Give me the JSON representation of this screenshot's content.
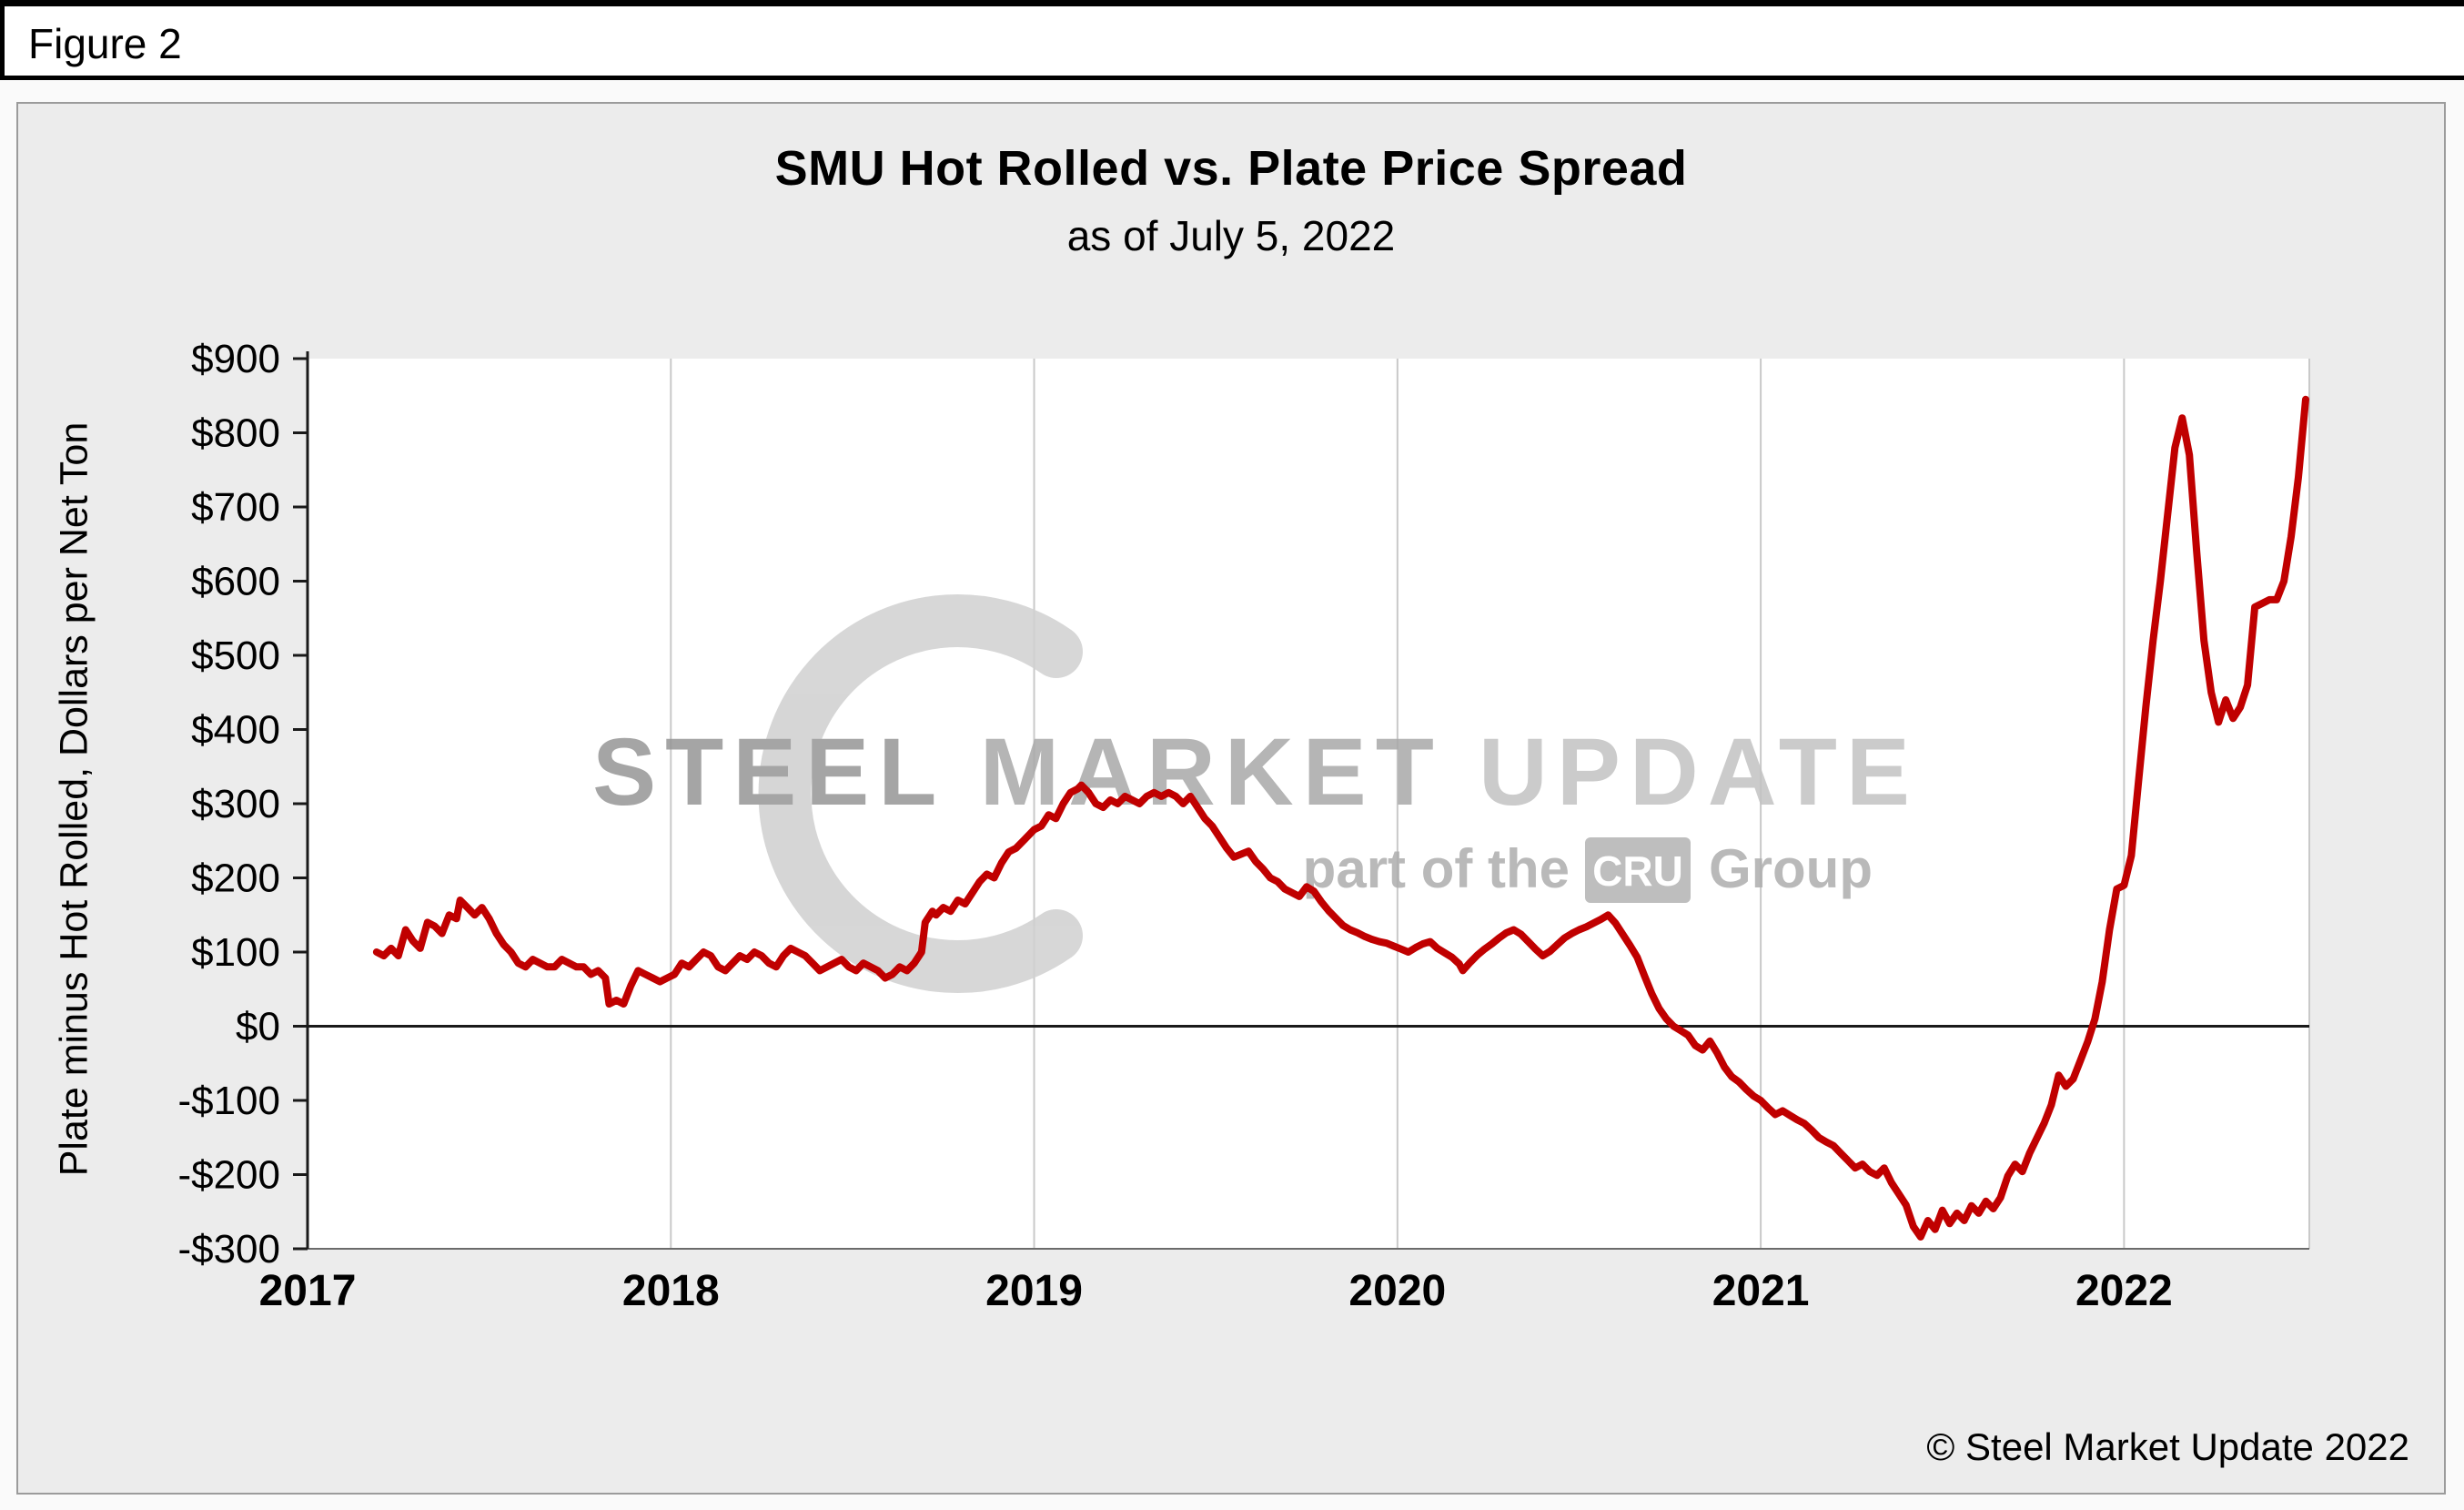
{
  "figure": {
    "label": "Figure 2"
  },
  "chart": {
    "title": "SMU Hot Rolled vs. Plate Price Spread",
    "subtitle": "as of July 5, 2022",
    "y_axis_label": "Plate minus Hot Rolled, Dollars per Net Ton",
    "copyright": "© Steel Market Update 2022"
  },
  "watermark": {
    "word1": "STEEL",
    "word2": "MARKET",
    "word3": "UPDATE",
    "tagline_pre": "part of the",
    "badge": "CRU",
    "tagline_post": "Group"
  },
  "chart_data": {
    "type": "line",
    "title": "SMU Hot Rolled vs. Plate Price Spread",
    "subtitle": "as of July 5, 2022",
    "xlabel": "",
    "ylabel": "Plate minus Hot Rolled, Dollars per Net Ton",
    "series_name": "Plate minus Hot Rolled price spread ($/net ton)",
    "color": "#C00000",
    "xlim": [
      2017,
      2022.51
    ],
    "ylim": [
      -300,
      900
    ],
    "x_ticks": [
      2017,
      2018,
      2019,
      2020,
      2021,
      2022
    ],
    "x_tick_labels": [
      "2017",
      "2018",
      "2019",
      "2020",
      "2021",
      "2022"
    ],
    "y_ticks": [
      900,
      800,
      700,
      600,
      500,
      400,
      300,
      200,
      100,
      0,
      -100,
      -200,
      -300
    ],
    "y_tick_labels": [
      "$900",
      "$800",
      "$700",
      "$600",
      "$500",
      "$400",
      "$300",
      "$200",
      "$100",
      "$0",
      "-$100",
      "-$200",
      "-$300"
    ],
    "grid": "vertical-only",
    "zero_line": true,
    "legend": "none",
    "points": [
      [
        2017.19,
        100
      ],
      [
        2017.21,
        95
      ],
      [
        2017.23,
        105
      ],
      [
        2017.25,
        95
      ],
      [
        2017.27,
        130
      ],
      [
        2017.29,
        115
      ],
      [
        2017.31,
        105
      ],
      [
        2017.33,
        140
      ],
      [
        2017.35,
        135
      ],
      [
        2017.37,
        125
      ],
      [
        2017.39,
        150
      ],
      [
        2017.41,
        145
      ],
      [
        2017.42,
        170
      ],
      [
        2017.44,
        160
      ],
      [
        2017.46,
        150
      ],
      [
        2017.48,
        160
      ],
      [
        2017.5,
        145
      ],
      [
        2017.52,
        125
      ],
      [
        2017.54,
        110
      ],
      [
        2017.56,
        100
      ],
      [
        2017.58,
        85
      ],
      [
        2017.6,
        80
      ],
      [
        2017.62,
        90
      ],
      [
        2017.64,
        85
      ],
      [
        2017.66,
        80
      ],
      [
        2017.68,
        80
      ],
      [
        2017.7,
        90
      ],
      [
        2017.72,
        85
      ],
      [
        2017.74,
        80
      ],
      [
        2017.76,
        80
      ],
      [
        2017.78,
        70
      ],
      [
        2017.8,
        75
      ],
      [
        2017.82,
        65
      ],
      [
        2017.83,
        30
      ],
      [
        2017.85,
        35
      ],
      [
        2017.87,
        30
      ],
      [
        2017.89,
        55
      ],
      [
        2017.91,
        75
      ],
      [
        2017.93,
        70
      ],
      [
        2017.95,
        65
      ],
      [
        2017.97,
        60
      ],
      [
        2017.99,
        65
      ],
      [
        2018.01,
        70
      ],
      [
        2018.03,
        85
      ],
      [
        2018.05,
        80
      ],
      [
        2018.07,
        90
      ],
      [
        2018.09,
        100
      ],
      [
        2018.11,
        95
      ],
      [
        2018.13,
        80
      ],
      [
        2018.15,
        75
      ],
      [
        2018.17,
        85
      ],
      [
        2018.19,
        95
      ],
      [
        2018.21,
        90
      ],
      [
        2018.23,
        100
      ],
      [
        2018.25,
        95
      ],
      [
        2018.27,
        85
      ],
      [
        2018.29,
        80
      ],
      [
        2018.31,
        95
      ],
      [
        2018.33,
        105
      ],
      [
        2018.35,
        100
      ],
      [
        2018.37,
        95
      ],
      [
        2018.39,
        85
      ],
      [
        2018.41,
        75
      ],
      [
        2018.43,
        80
      ],
      [
        2018.45,
        85
      ],
      [
        2018.47,
        90
      ],
      [
        2018.49,
        80
      ],
      [
        2018.51,
        75
      ],
      [
        2018.53,
        85
      ],
      [
        2018.55,
        80
      ],
      [
        2018.57,
        75
      ],
      [
        2018.59,
        65
      ],
      [
        2018.61,
        70
      ],
      [
        2018.63,
        80
      ],
      [
        2018.65,
        75
      ],
      [
        2018.67,
        85
      ],
      [
        2018.69,
        100
      ],
      [
        2018.7,
        140
      ],
      [
        2018.72,
        155
      ],
      [
        2018.73,
        150
      ],
      [
        2018.75,
        160
      ],
      [
        2018.77,
        155
      ],
      [
        2018.79,
        170
      ],
      [
        2018.81,
        165
      ],
      [
        2018.83,
        180
      ],
      [
        2018.85,
        195
      ],
      [
        2018.87,
        205
      ],
      [
        2018.89,
        200
      ],
      [
        2018.91,
        220
      ],
      [
        2018.93,
        235
      ],
      [
        2018.95,
        240
      ],
      [
        2018.97,
        250
      ],
      [
        2018.99,
        260
      ],
      [
        2019.0,
        265
      ],
      [
        2019.02,
        270
      ],
      [
        2019.04,
        285
      ],
      [
        2019.06,
        280
      ],
      [
        2019.08,
        300
      ],
      [
        2019.1,
        315
      ],
      [
        2019.12,
        320
      ],
      [
        2019.13,
        325
      ],
      [
        2019.15,
        315
      ],
      [
        2019.17,
        300
      ],
      [
        2019.19,
        295
      ],
      [
        2019.21,
        305
      ],
      [
        2019.23,
        300
      ],
      [
        2019.25,
        310
      ],
      [
        2019.27,
        305
      ],
      [
        2019.29,
        300
      ],
      [
        2019.31,
        310
      ],
      [
        2019.33,
        315
      ],
      [
        2019.35,
        310
      ],
      [
        2019.37,
        315
      ],
      [
        2019.39,
        310
      ],
      [
        2019.41,
        300
      ],
      [
        2019.43,
        310
      ],
      [
        2019.45,
        295
      ],
      [
        2019.47,
        280
      ],
      [
        2019.49,
        270
      ],
      [
        2019.51,
        255
      ],
      [
        2019.53,
        240
      ],
      [
        2019.55,
        228
      ],
      [
        2019.57,
        232
      ],
      [
        2019.59,
        236
      ],
      [
        2019.61,
        222
      ],
      [
        2019.63,
        212
      ],
      [
        2019.65,
        200
      ],
      [
        2019.67,
        195
      ],
      [
        2019.69,
        185
      ],
      [
        2019.71,
        180
      ],
      [
        2019.73,
        175
      ],
      [
        2019.75,
        188
      ],
      [
        2019.77,
        182
      ],
      [
        2019.79,
        168
      ],
      [
        2019.81,
        156
      ],
      [
        2019.83,
        146
      ],
      [
        2019.85,
        136
      ],
      [
        2019.87,
        130
      ],
      [
        2019.89,
        126
      ],
      [
        2019.91,
        121
      ],
      [
        2019.93,
        117
      ],
      [
        2019.95,
        114
      ],
      [
        2019.97,
        112
      ],
      [
        2019.99,
        108
      ],
      [
        2020.01,
        104
      ],
      [
        2020.03,
        100
      ],
      [
        2020.05,
        106
      ],
      [
        2020.07,
        111
      ],
      [
        2020.09,
        114
      ],
      [
        2020.11,
        105
      ],
      [
        2020.13,
        99
      ],
      [
        2020.15,
        93
      ],
      [
        2020.17,
        84
      ],
      [
        2020.18,
        75
      ],
      [
        2020.2,
        86
      ],
      [
        2020.22,
        96
      ],
      [
        2020.24,
        104
      ],
      [
        2020.26,
        111
      ],
      [
        2020.28,
        119
      ],
      [
        2020.3,
        126
      ],
      [
        2020.32,
        130
      ],
      [
        2020.34,
        124
      ],
      [
        2020.36,
        114
      ],
      [
        2020.38,
        104
      ],
      [
        2020.4,
        95
      ],
      [
        2020.42,
        101
      ],
      [
        2020.44,
        110
      ],
      [
        2020.46,
        119
      ],
      [
        2020.48,
        125
      ],
      [
        2020.5,
        130
      ],
      [
        2020.52,
        134
      ],
      [
        2020.54,
        139
      ],
      [
        2020.56,
        144
      ],
      [
        2020.58,
        150
      ],
      [
        2020.6,
        139
      ],
      [
        2020.62,
        124
      ],
      [
        2020.64,
        109
      ],
      [
        2020.66,
        93
      ],
      [
        2020.68,
        68
      ],
      [
        2020.7,
        44
      ],
      [
        2020.72,
        24
      ],
      [
        2020.74,
        10
      ],
      [
        2020.76,
        0
      ],
      [
        2020.78,
        -6
      ],
      [
        2020.8,
        -12
      ],
      [
        2020.82,
        -26
      ],
      [
        2020.84,
        -32
      ],
      [
        2020.86,
        -20
      ],
      [
        2020.88,
        -36
      ],
      [
        2020.9,
        -55
      ],
      [
        2020.92,
        -68
      ],
      [
        2020.94,
        -75
      ],
      [
        2020.96,
        -85
      ],
      [
        2020.98,
        -94
      ],
      [
        2021.0,
        -100
      ],
      [
        2021.02,
        -110
      ],
      [
        2021.04,
        -119
      ],
      [
        2021.06,
        -114
      ],
      [
        2021.08,
        -120
      ],
      [
        2021.1,
        -126
      ],
      [
        2021.12,
        -131
      ],
      [
        2021.14,
        -140
      ],
      [
        2021.16,
        -150
      ],
      [
        2021.18,
        -156
      ],
      [
        2021.2,
        -161
      ],
      [
        2021.22,
        -171
      ],
      [
        2021.24,
        -181
      ],
      [
        2021.26,
        -191
      ],
      [
        2021.28,
        -186
      ],
      [
        2021.3,
        -196
      ],
      [
        2021.32,
        -201
      ],
      [
        2021.34,
        -191
      ],
      [
        2021.36,
        -211
      ],
      [
        2021.38,
        -226
      ],
      [
        2021.4,
        -241
      ],
      [
        2021.42,
        -270
      ],
      [
        2021.44,
        -284
      ],
      [
        2021.46,
        -262
      ],
      [
        2021.48,
        -274
      ],
      [
        2021.5,
        -248
      ],
      [
        2021.52,
        -266
      ],
      [
        2021.54,
        -252
      ],
      [
        2021.56,
        -262
      ],
      [
        2021.58,
        -242
      ],
      [
        2021.6,
        -252
      ],
      [
        2021.62,
        -236
      ],
      [
        2021.64,
        -246
      ],
      [
        2021.66,
        -231
      ],
      [
        2021.68,
        -202
      ],
      [
        2021.7,
        -186
      ],
      [
        2021.72,
        -196
      ],
      [
        2021.74,
        -171
      ],
      [
        2021.76,
        -151
      ],
      [
        2021.78,
        -131
      ],
      [
        2021.8,
        -106
      ],
      [
        2021.82,
        -66
      ],
      [
        2021.84,
        -81
      ],
      [
        2021.86,
        -71
      ],
      [
        2021.88,
        -46
      ],
      [
        2021.9,
        -21
      ],
      [
        2021.92,
        10
      ],
      [
        2021.94,
        60
      ],
      [
        2021.96,
        130
      ],
      [
        2021.98,
        185
      ],
      [
        2022.0,
        190
      ],
      [
        2022.02,
        230
      ],
      [
        2022.04,
        330
      ],
      [
        2022.06,
        430
      ],
      [
        2022.08,
        520
      ],
      [
        2022.1,
        600
      ],
      [
        2022.12,
        690
      ],
      [
        2022.14,
        780
      ],
      [
        2022.16,
        820
      ],
      [
        2022.18,
        770
      ],
      [
        2022.2,
        640
      ],
      [
        2022.22,
        520
      ],
      [
        2022.24,
        450
      ],
      [
        2022.26,
        410
      ],
      [
        2022.28,
        440
      ],
      [
        2022.3,
        415
      ],
      [
        2022.32,
        430
      ],
      [
        2022.34,
        460
      ],
      [
        2022.36,
        565
      ],
      [
        2022.38,
        570
      ],
      [
        2022.4,
        575
      ],
      [
        2022.42,
        575
      ],
      [
        2022.44,
        600
      ],
      [
        2022.46,
        660
      ],
      [
        2022.48,
        740
      ],
      [
        2022.5,
        845
      ]
    ]
  }
}
